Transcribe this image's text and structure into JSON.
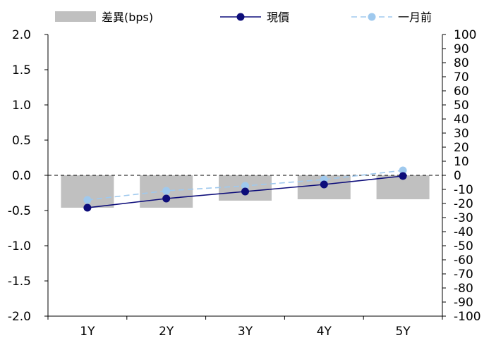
{
  "chart_data": {
    "type": "bar",
    "categories": [
      "1Y",
      "2Y",
      "3Y",
      "4Y",
      "5Y"
    ],
    "series": [
      {
        "name": "差異(bps)",
        "type": "bar",
        "axis": "right",
        "color": "#c0c0c0",
        "values": [
          -23,
          -23,
          -18,
          -17,
          -17
        ]
      },
      {
        "name": "現價",
        "type": "line",
        "axis": "left",
        "color": "#0d0d7a",
        "values": [
          -0.46,
          -0.33,
          -0.23,
          -0.13,
          -0.01
        ]
      },
      {
        "name": "一月前",
        "type": "line",
        "axis": "left",
        "color": "#9fc9ee",
        "dashed": true,
        "values": [
          -0.35,
          -0.22,
          -0.15,
          -0.06,
          0.07
        ]
      }
    ],
    "left_axis": {
      "ylim": [
        -2.0,
        2.0
      ],
      "ticks": [
        "2.0",
        "1.5",
        "1.0",
        "0.5",
        "0.0",
        "-0.5",
        "-1.0",
        "-1.5",
        "-2.0"
      ]
    },
    "right_axis": {
      "ylim": [
        -100,
        100
      ],
      "ticks": [
        "100",
        "90",
        "80",
        "70",
        "60",
        "50",
        "40",
        "30",
        "20",
        "10",
        "0",
        "-10",
        "-20",
        "-30",
        "-40",
        "-50",
        "-60",
        "-70",
        "-80",
        "-90",
        "-100"
      ]
    },
    "zero_line": "dashed",
    "grid": false,
    "legend_position": "top"
  }
}
